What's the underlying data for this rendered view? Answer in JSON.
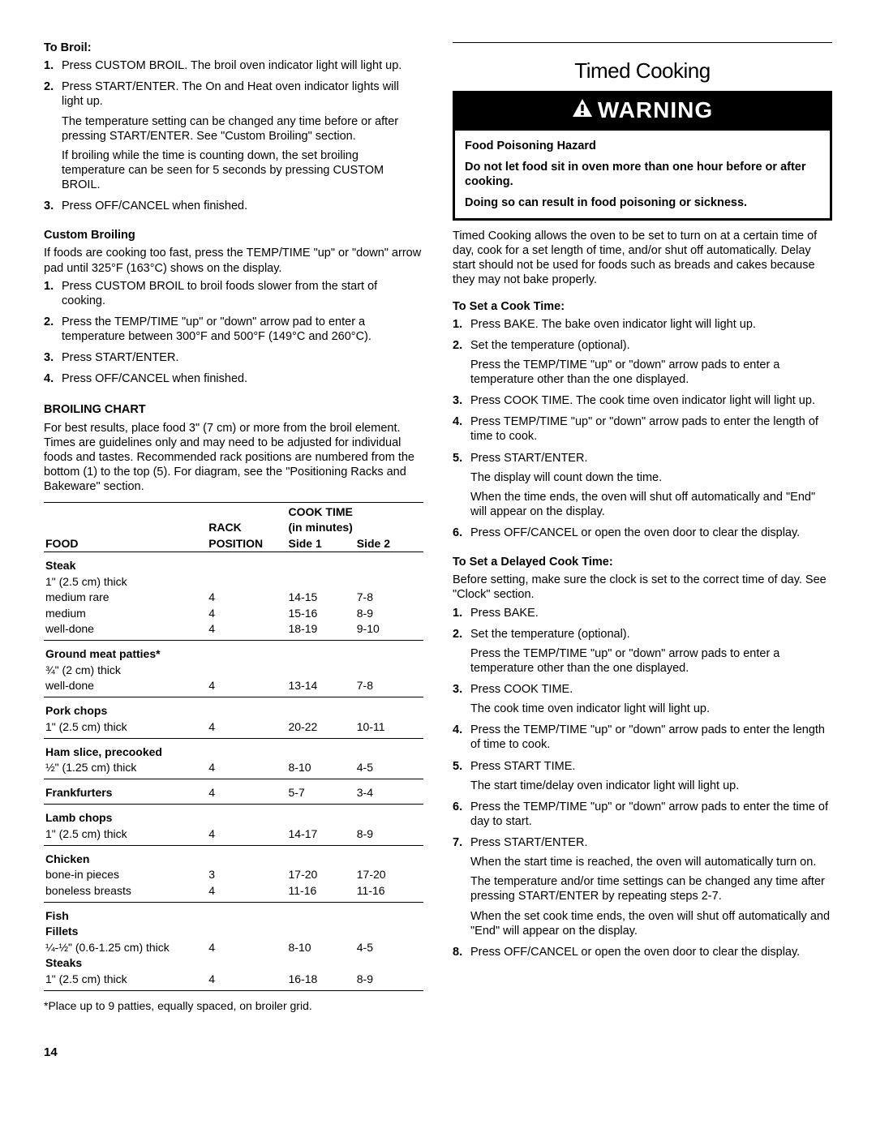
{
  "left": {
    "toBroil": {
      "heading": "To Broil:",
      "items": [
        {
          "n": "1.",
          "lines": [
            "Press CUSTOM BROIL. The broil oven indicator light will light up."
          ]
        },
        {
          "n": "2.",
          "lines": [
            "Press START/ENTER. The On and Heat oven indicator lights will light up.",
            "The temperature setting can be changed any time before or after pressing START/ENTER. See \"Custom Broiling\" section.",
            "If broiling while the time is counting down, the set broiling temperature can be seen for 5 seconds by pressing CUSTOM BROIL."
          ]
        },
        {
          "n": "3.",
          "lines": [
            "Press OFF/CANCEL when finished."
          ]
        }
      ]
    },
    "custom": {
      "heading": "Custom Broiling",
      "intro": "If foods are cooking too fast, press the TEMP/TIME \"up\" or \"down\" arrow pad until 325°F (163°C) shows on the display.",
      "items": [
        {
          "n": "1.",
          "lines": [
            "Press CUSTOM BROIL to broil foods slower from the start of cooking."
          ]
        },
        {
          "n": "2.",
          "lines": [
            "Press the TEMP/TIME \"up\" or \"down\" arrow pad to enter a temperature between 300°F and 500°F (149°C and 260°C)."
          ]
        },
        {
          "n": "3.",
          "lines": [
            "Press START/ENTER."
          ]
        },
        {
          "n": "4.",
          "lines": [
            "Press OFF/CANCEL when finished."
          ]
        }
      ]
    },
    "chart": {
      "title": "BROILING CHART",
      "intro": "For best results, place food 3\" (7 cm) or more from the broil element. Times are guidelines only and may need to be adjusted for individual foods and tastes. Recommended rack positions are numbered from the bottom (1) to the top (5). For diagram, see the \"Positioning Racks and Bakeware\" section.",
      "header": {
        "food": "FOOD",
        "rack": "RACK POSITION",
        "cook": "COOK TIME (in minutes)",
        "s1": "Side 1",
        "s2": "Side 2"
      },
      "groups": [
        {
          "rows": [
            {
              "bold": true,
              "food": "Steak",
              "pos": "",
              "s1": "",
              "s2": ""
            },
            {
              "food": "1\" (2.5 cm) thick",
              "pos": "",
              "s1": "",
              "s2": ""
            },
            {
              "food": "medium rare",
              "pos": "4",
              "s1": "14-15",
              "s2": "7-8"
            },
            {
              "food": "medium",
              "pos": "4",
              "s1": "15-16",
              "s2": "8-9"
            },
            {
              "food": "well-done",
              "pos": "4",
              "s1": "18-19",
              "s2": "9-10"
            }
          ]
        },
        {
          "rows": [
            {
              "bold": true,
              "food": "Ground meat patties*",
              "pos": "",
              "s1": "",
              "s2": ""
            },
            {
              "food": "¾\" (2 cm) thick",
              "pos": "",
              "s1": "",
              "s2": ""
            },
            {
              "food": "well-done",
              "pos": "4",
              "s1": "13-14",
              "s2": "7-8"
            }
          ]
        },
        {
          "rows": [
            {
              "bold": true,
              "food": "Pork chops",
              "pos": "",
              "s1": "",
              "s2": ""
            },
            {
              "food": "1\" (2.5 cm) thick",
              "pos": "4",
              "s1": "20-22",
              "s2": "10-11"
            }
          ]
        },
        {
          "rows": [
            {
              "bold": true,
              "food": "Ham slice, precooked",
              "pos": "",
              "s1": "",
              "s2": ""
            },
            {
              "food": "½\" (1.25 cm) thick",
              "pos": "4",
              "s1": "8-10",
              "s2": "4-5"
            }
          ]
        },
        {
          "rows": [
            {
              "bold": true,
              "food": "Frankfurters",
              "pos": "4",
              "s1": "5-7",
              "s2": "3-4"
            }
          ]
        },
        {
          "rows": [
            {
              "bold": true,
              "food": "Lamb chops",
              "pos": "",
              "s1": "",
              "s2": ""
            },
            {
              "food": "1\" (2.5 cm) thick",
              "pos": "4",
              "s1": "14-17",
              "s2": "8-9"
            }
          ]
        },
        {
          "rows": [
            {
              "bold": true,
              "food": "Chicken",
              "pos": "",
              "s1": "",
              "s2": ""
            },
            {
              "food": "bone-in pieces",
              "pos": "3",
              "s1": "17-20",
              "s2": "17-20"
            },
            {
              "food": "boneless breasts",
              "pos": "4",
              "s1": "11-16",
              "s2": "11-16"
            }
          ]
        },
        {
          "rows": [
            {
              "bold": true,
              "food": "Fish",
              "pos": "",
              "s1": "",
              "s2": ""
            },
            {
              "bold": true,
              "food": "Fillets",
              "pos": "",
              "s1": "",
              "s2": ""
            },
            {
              "food": "¼-½\" (0.6-1.25 cm) thick",
              "pos": "4",
              "s1": "8-10",
              "s2": "4-5"
            },
            {
              "bold": true,
              "food": "Steaks",
              "pos": "",
              "s1": "",
              "s2": ""
            },
            {
              "food": "1\" (2.5 cm) thick",
              "pos": "4",
              "s1": "16-18",
              "s2": "8-9"
            }
          ]
        }
      ],
      "footnote": "*Place up to 9 patties, equally spaced, on broiler grid."
    },
    "pageNum": "14"
  },
  "right": {
    "title": "Timed Cooking",
    "warning": "WARNING",
    "hazard": [
      "Food Poisoning Hazard",
      "Do not let food sit in oven more than one hour before or after cooking.",
      "Doing so can result in food poisoning or sickness."
    ],
    "intro": "Timed Cooking allows the oven to be set to turn on at a certain time of day, cook for a set length of time, and/or shut off automatically. Delay start should not be used for foods such as breads and cakes because they may not bake properly.",
    "setCook": {
      "heading": "To Set a Cook Time:",
      "items": [
        {
          "n": "1.",
          "lines": [
            "Press BAKE. The bake oven indicator light will light up."
          ]
        },
        {
          "n": "2.",
          "lines": [
            "Set the temperature (optional).",
            "Press the TEMP/TIME \"up\" or \"down\" arrow pads to enter a temperature other than the one displayed."
          ]
        },
        {
          "n": "3.",
          "lines": [
            "Press COOK TIME. The cook time oven indicator light will light up."
          ]
        },
        {
          "n": "4.",
          "lines": [
            "Press TEMP/TIME \"up\" or \"down\" arrow pads to enter the length of time to cook."
          ]
        },
        {
          "n": "5.",
          "lines": [
            "Press START/ENTER.",
            "The display will count down the time.",
            "When the time ends, the oven will shut off automatically and \"End\" will appear on the display."
          ]
        },
        {
          "n": "6.",
          "lines": [
            "Press OFF/CANCEL or open the oven door to clear the display."
          ]
        }
      ]
    },
    "setDelay": {
      "heading": "To Set a Delayed Cook Time:",
      "intro": "Before setting, make sure the clock is set to the correct time of day. See \"Clock\" section.",
      "items": [
        {
          "n": "1.",
          "lines": [
            "Press BAKE."
          ]
        },
        {
          "n": "2.",
          "lines": [
            "Set the temperature (optional).",
            "Press the TEMP/TIME \"up\" or \"down\" arrow pads to enter a temperature other than the one displayed."
          ]
        },
        {
          "n": "3.",
          "lines": [
            "Press COOK TIME.",
            "The cook time oven indicator light will light up."
          ]
        },
        {
          "n": "4.",
          "lines": [
            "Press the TEMP/TIME \"up\" or \"down\" arrow pads to enter the length of time to cook."
          ]
        },
        {
          "n": "5.",
          "lines": [
            "Press START TIME.",
            "The start time/delay oven indicator light will light up."
          ]
        },
        {
          "n": "6.",
          "lines": [
            "Press the TEMP/TIME \"up\" or \"down\" arrow pads to enter the time of day to start."
          ]
        },
        {
          "n": "7.",
          "lines": [
            "Press START/ENTER.",
            "When the start time is reached, the oven will automatically turn on.",
            "The temperature and/or time settings can be changed any time after pressing START/ENTER by repeating steps 2-7.",
            "When the set cook time ends, the oven will shut off automatically and \"End\" will appear on the display."
          ]
        },
        {
          "n": "8.",
          "lines": [
            "Press OFF/CANCEL or open the oven door to clear the display."
          ]
        }
      ]
    }
  }
}
